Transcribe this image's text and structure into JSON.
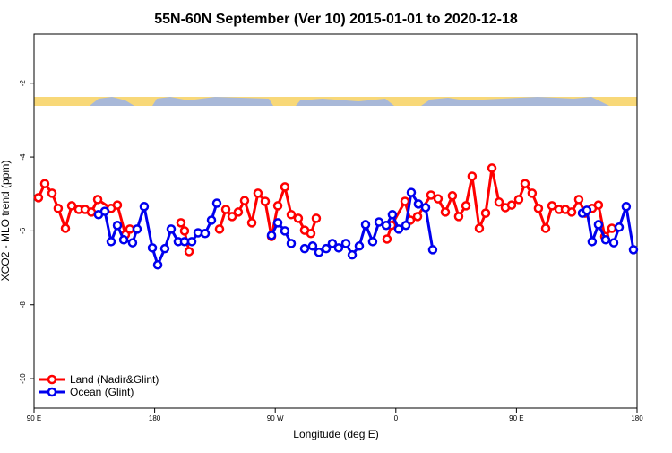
{
  "chart_data": {
    "type": "line",
    "title": "55N-60N September (Ver 10)   2015-01-01 to 2020-12-18",
    "x_label": "Longitude (deg E)",
    "y_label": "XCO2 - MLO trend (ppm)",
    "xlim": [
      90,
      540
    ],
    "xticks": [
      {
        "value": 90,
        "label": "90 E"
      },
      180,
      {
        "value": 270,
        "label": "90 W"
      },
      {
        "value": 360,
        "label": "0"
      },
      {
        "value": 450,
        "label": "90 E"
      },
      {
        "value": 540,
        "label": "180"
      }
    ],
    "ylim": [
      -10.8,
      -0.67
    ],
    "yticks": [
      -10,
      -8,
      -6,
      -4,
      -2
    ],
    "legend": "bottom-left",
    "series": [
      {
        "name": "Land (Nadir&Glint)",
        "color": "#ff0000",
        "x": [
          93.3,
          98.0,
          103.4,
          108.0,
          113.4,
          118.1,
          123.4,
          128.1,
          132.8,
          137.5,
          147.5,
          152.2,
          158.2,
          161.5,
          null,
          199.6,
          202.3,
          205.7,
          null,
          228.4,
          233.1,
          237.8,
          242.4,
          247.1,
          252.5,
          257.1,
          262.5,
          267.2,
          271.9,
          277.2,
          281.9,
          287.2,
          291.9,
          296.6,
          300.6,
          null,
          353.4,
          356.8,
          366.8,
          370.8,
          376.2,
          386.2,
          391.5,
          396.9,
          402.2,
          406.9,
          412.3,
          416.9,
          422.3,
          427.0,
          431.7,
          437.0,
          441.7,
          446.4,
          451.7,
          456.4,
          461.7,
          466.4,
          471.8,
          476.5,
          481.8,
          486.5,
          491.2,
          496.5,
          501.2,
          506.5,
          511.2,
          515.9,
          521.2
        ],
        "values": [
          -5.1,
          -4.72,
          -4.98,
          -5.39,
          -5.93,
          -5.32,
          -5.42,
          -5.42,
          -5.49,
          -5.15,
          -5.39,
          -5.3,
          -6.1,
          -5.95,
          null,
          -5.78,
          -6.0,
          -6.56,
          null,
          -5.95,
          -5.42,
          -5.61,
          -5.49,
          -5.18,
          -5.78,
          -4.98,
          -5.2,
          -6.15,
          -5.32,
          -4.81,
          -5.56,
          -5.66,
          -5.98,
          -6.07,
          -5.66,
          null,
          -6.22,
          -5.85,
          -5.2,
          -5.71,
          -5.61,
          -5.03,
          -5.13,
          -5.49,
          -5.05,
          -5.61,
          -5.32,
          -4.52,
          -5.93,
          -5.52,
          -4.3,
          -5.22,
          -5.37,
          -5.3,
          -5.15,
          -4.72,
          -4.98,
          -5.39,
          -5.93,
          -5.32,
          -5.42,
          -5.42,
          -5.49,
          -5.15,
          -5.52,
          -5.39,
          -5.3,
          -6.15,
          -5.93
        ]
      },
      {
        "name": "Ocean (Glint)",
        "color": "#0000ee",
        "x": [
          138.1,
          142.8,
          147.5,
          152.2,
          156.9,
          163.5,
          166.9,
          172.2,
          178.3,
          182.3,
          187.6,
          192.3,
          197.6,
          202.3,
          207.7,
          212.4,
          217.7,
          222.4,
          226.4,
          null,
          267.2,
          271.9,
          277.2,
          281.9,
          null,
          291.9,
          297.9,
          302.6,
          308.0,
          312.6,
          317.3,
          322.7,
          327.4,
          332.7,
          337.4,
          342.7,
          347.4,
          352.8,
          357.4,
          362.1,
          367.5,
          371.5,
          376.8,
          382.2,
          387.5,
          null,
          499.2,
          502.5,
          506.5,
          511.2,
          516.6,
          522.6,
          526.6,
          531.9,
          537.3
        ],
        "values": [
          -5.56,
          -5.47,
          -6.29,
          -5.85,
          -6.24,
          -6.32,
          -5.95,
          -5.34,
          -6.46,
          -6.92,
          -6.48,
          -5.95,
          -6.29,
          -6.29,
          -6.29,
          -6.05,
          -6.07,
          -5.71,
          -5.25,
          null,
          -6.12,
          -5.78,
          -6.0,
          -6.34,
          null,
          -6.48,
          -6.41,
          -6.58,
          -6.48,
          -6.34,
          -6.46,
          -6.34,
          -6.65,
          -6.41,
          -5.83,
          -6.29,
          -5.76,
          -5.85,
          -5.56,
          -5.95,
          -5.85,
          -4.96,
          -5.27,
          -5.37,
          -6.51,
          null,
          -5.52,
          -5.44,
          -6.29,
          -5.83,
          -6.24,
          -6.32,
          -5.9,
          -5.34,
          -6.51
        ]
      }
    ]
  }
}
